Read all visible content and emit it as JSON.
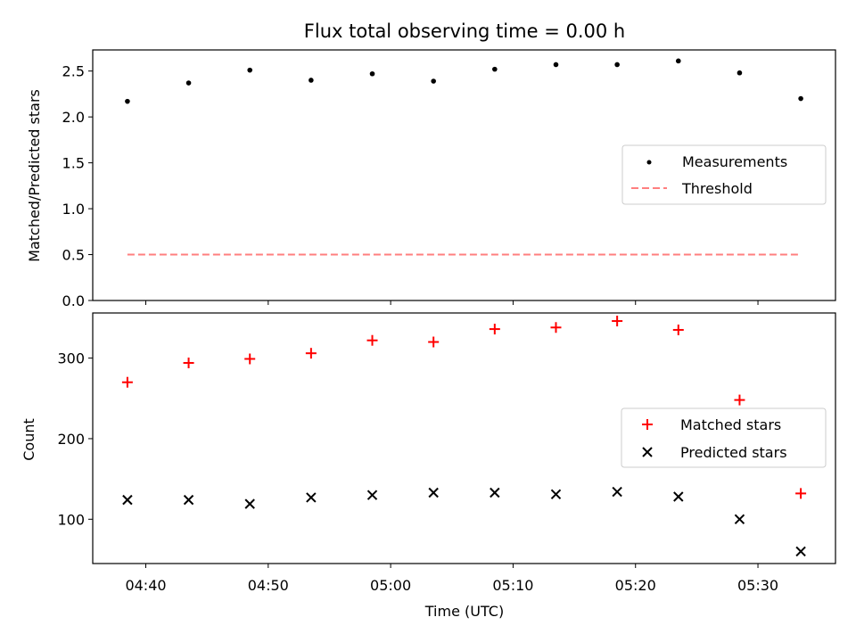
{
  "colors": {
    "measurement": "#000000",
    "threshold": "#ff7f7f",
    "matched": "#ff0000",
    "predicted": "#000000",
    "axes": "#000000",
    "legend_border": "#cccccc"
  },
  "chart_data": [
    {
      "type": "scatter",
      "title": "Flux total observing time = 0.00 h",
      "xlabel": "",
      "ylabel": "Matched/Predicted stars",
      "x_axis": "time (UTC)",
      "xlim": [
        "04:35:40",
        "05:36:20"
      ],
      "ylim": [
        0,
        2.73
      ],
      "yticks": [
        "0.0",
        "0.5",
        "1.0",
        "1.5",
        "2.0",
        "2.5"
      ],
      "grid": false,
      "legend": "center-right",
      "series": [
        {
          "name": "Measurements",
          "marker": "dot",
          "x": [
            "04:38:30",
            "04:43:30",
            "04:48:30",
            "04:53:30",
            "04:58:30",
            "05:03:30",
            "05:08:30",
            "05:13:30",
            "05:18:30",
            "05:23:30",
            "05:28:30",
            "05:33:30"
          ],
          "y": [
            2.17,
            2.37,
            2.51,
            2.4,
            2.47,
            2.39,
            2.52,
            2.57,
            2.57,
            2.61,
            2.48,
            2.2
          ]
        },
        {
          "name": "Threshold",
          "marker": "dashed-line",
          "x": [
            "04:38:30",
            "05:33:30"
          ],
          "y": [
            0.5,
            0.5
          ]
        }
      ]
    },
    {
      "type": "scatter",
      "title": "",
      "xlabel": "Time (UTC)",
      "ylabel": "Count",
      "x_axis": "time (UTC)",
      "xlim": [
        "04:35:40",
        "05:36:20"
      ],
      "xticks": [
        "04:40",
        "04:50",
        "05:00",
        "05:10",
        "05:20",
        "05:30"
      ],
      "ylim": [
        45,
        356
      ],
      "yticks": [
        "100",
        "200",
        "300"
      ],
      "grid": false,
      "legend": "center-right",
      "series": [
        {
          "name": "Matched stars",
          "marker": "plus",
          "x": [
            "04:38:30",
            "04:43:30",
            "04:48:30",
            "04:53:30",
            "04:58:30",
            "05:03:30",
            "05:08:30",
            "05:13:30",
            "05:18:30",
            "05:23:30",
            "05:28:30",
            "05:33:30"
          ],
          "y": [
            270,
            294,
            299,
            306,
            322,
            320,
            336,
            338,
            346,
            335,
            248,
            132
          ]
        },
        {
          "name": "Predicted stars",
          "marker": "x",
          "x": [
            "04:38:30",
            "04:43:30",
            "04:48:30",
            "04:53:30",
            "04:58:30",
            "05:03:30",
            "05:08:30",
            "05:13:30",
            "05:18:30",
            "05:23:30",
            "05:28:30",
            "05:33:30"
          ],
          "y": [
            124,
            124,
            119,
            127,
            130,
            133,
            133,
            131,
            134,
            128,
            100,
            60
          ]
        }
      ]
    }
  ]
}
